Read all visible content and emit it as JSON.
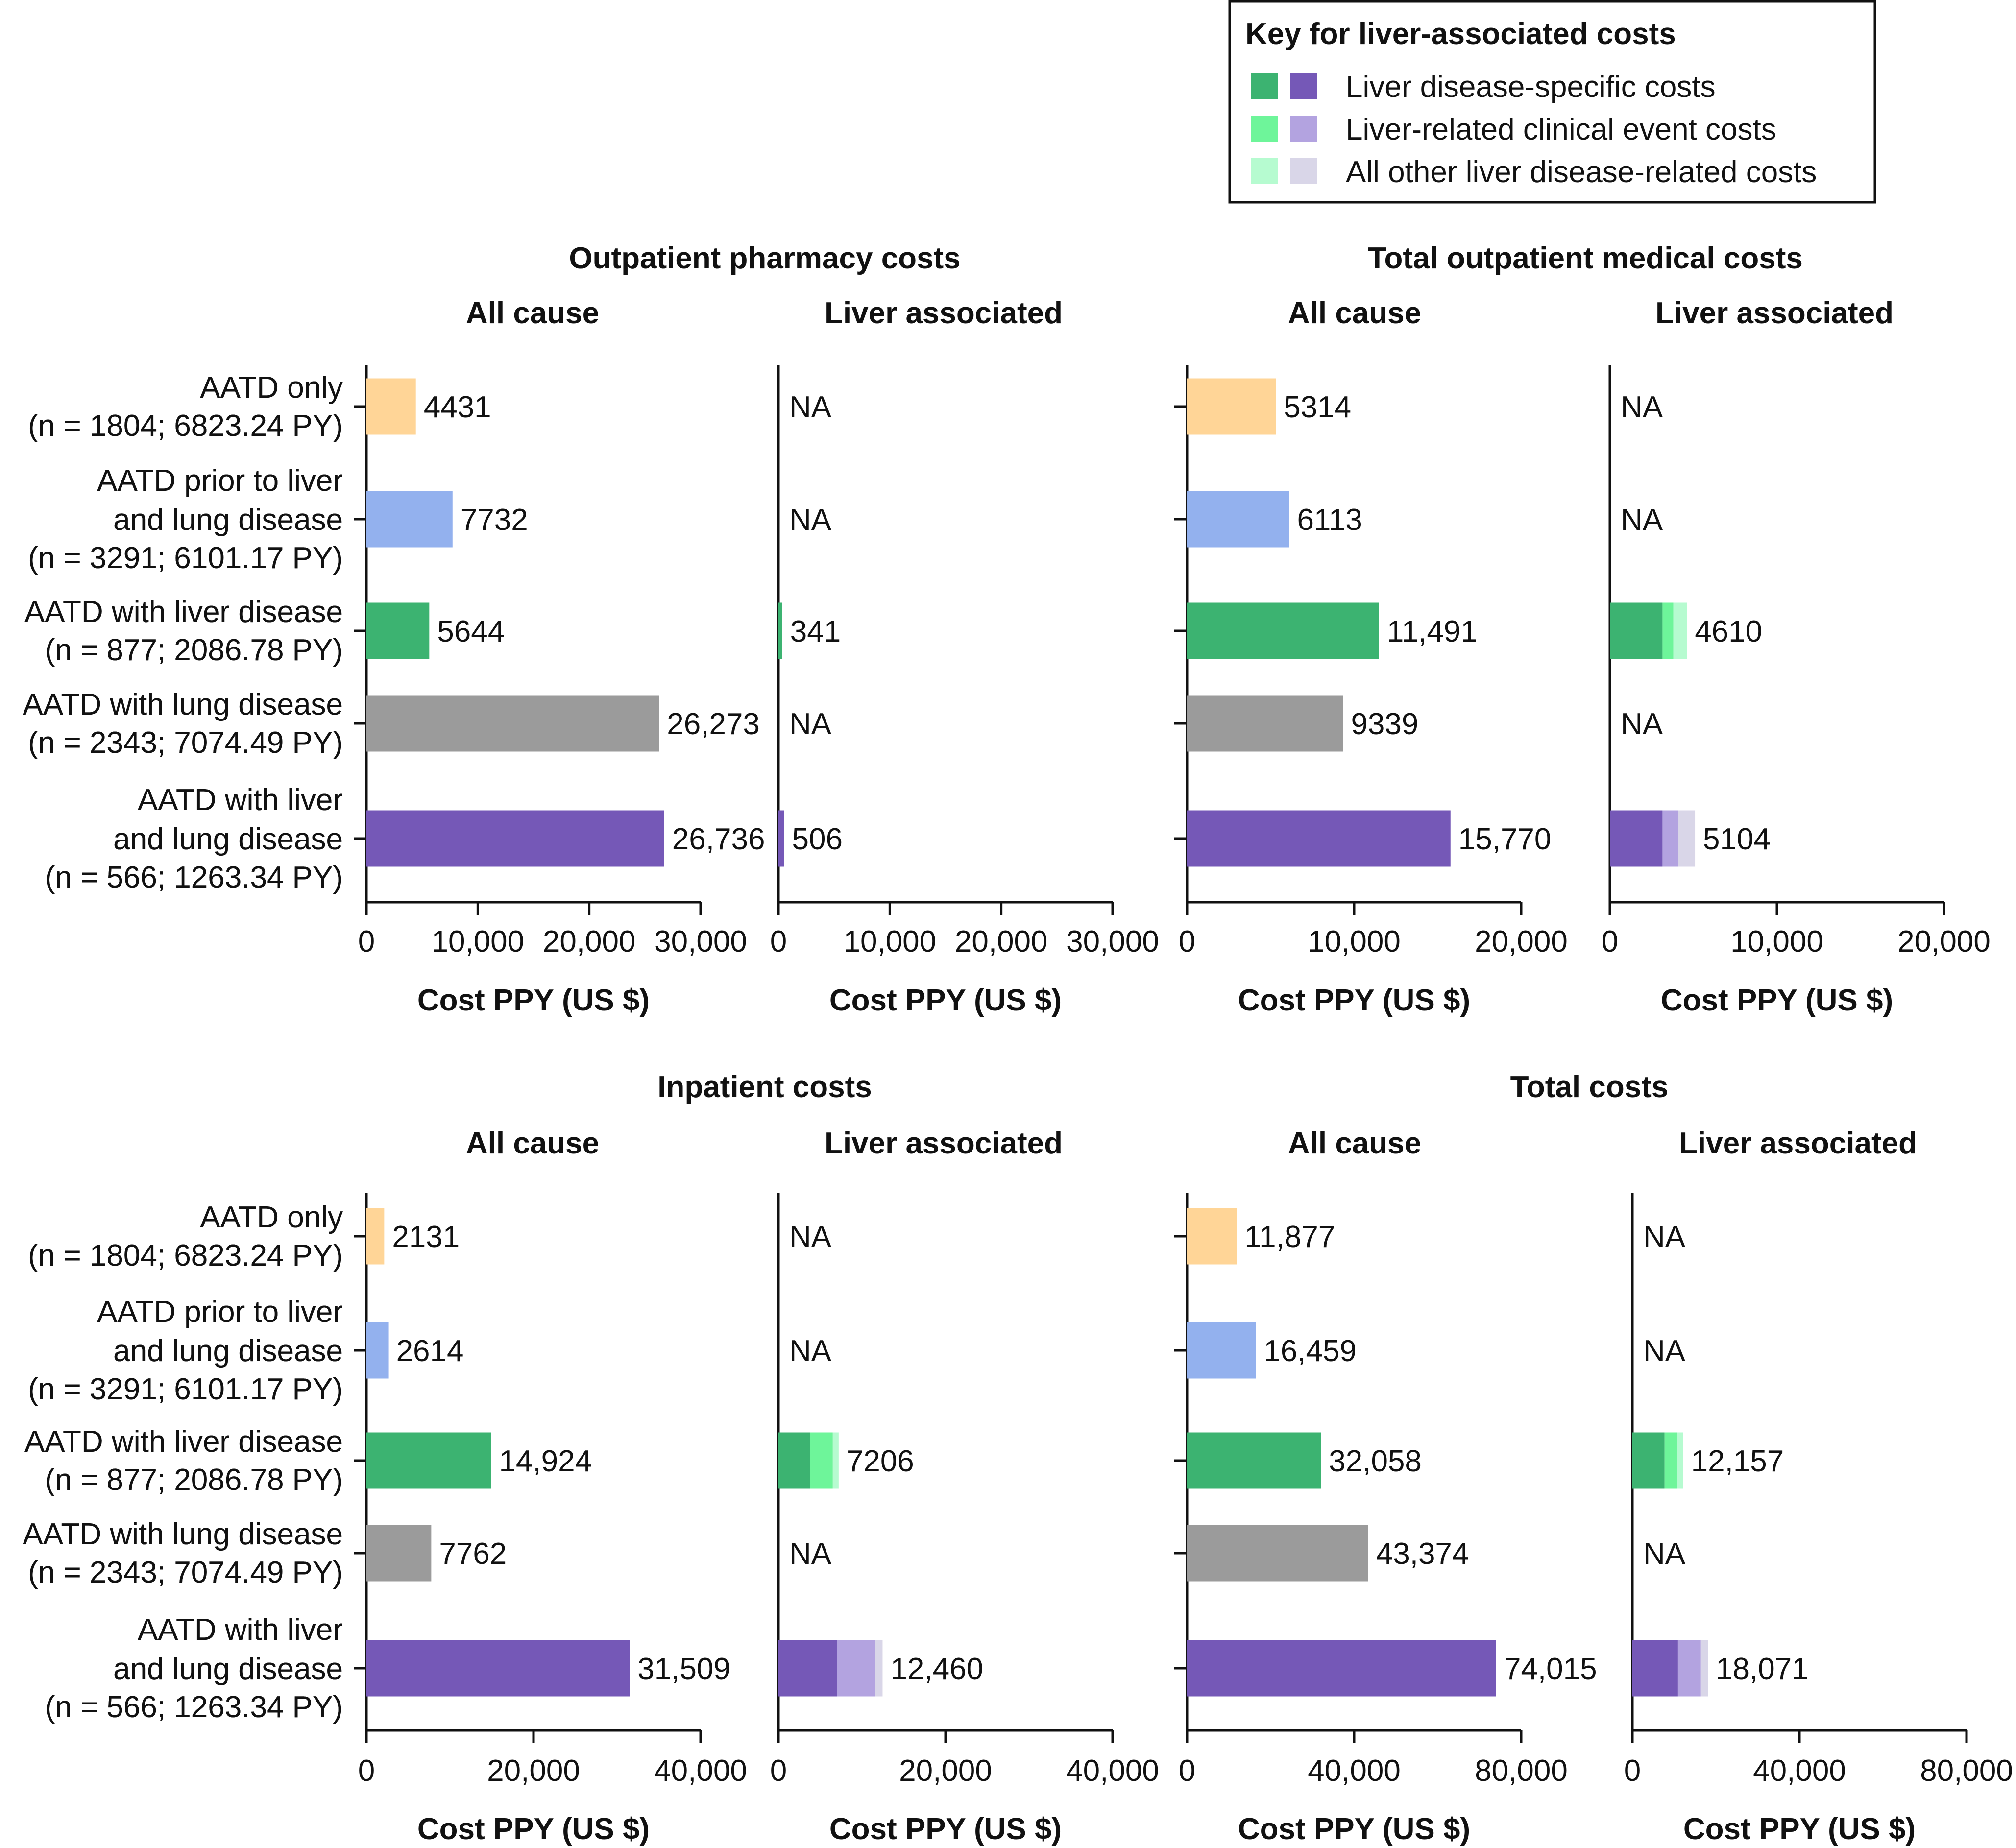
{
  "legend": {
    "title": "Key for liver-associated costs",
    "items": [
      {
        "label": "Liver disease-specific costs",
        "colors": [
          "#3cb371",
          "#7558b7"
        ]
      },
      {
        "label": "Liver-related clinical event costs",
        "colors": [
          "#6ef59a",
          "#b3a3e0"
        ]
      },
      {
        "label": "All other liver disease-related costs",
        "colors": [
          "#b6fbd0",
          "#d9d6e8"
        ]
      }
    ]
  },
  "categories": [
    [
      "AATD only",
      "(n = 1804; 6823.24 PY)"
    ],
    [
      "AATD prior to liver",
      "and lung disease",
      "(n = 3291; 6101.17 PY)"
    ],
    [
      "AATD with liver disease",
      "(n = 877; 2086.78 PY)"
    ],
    [
      "AATD with lung disease",
      "(n = 2343; 7074.49 PY)"
    ],
    [
      "AATD with liver",
      "and lung disease",
      "(n = 566; 1263.34 PY)"
    ]
  ],
  "colors": {
    "all_cause": [
      "#ffd597",
      "#93b1ee",
      "#3cb371",
      "#9b9b9b",
      "#7558b7"
    ],
    "liver_green": [
      "#3cb371",
      "#6ef59a",
      "#b6fbd0"
    ],
    "liver_purple": [
      "#7558b7",
      "#b3a3e0",
      "#d9d6e8"
    ]
  },
  "chart_data": [
    {
      "type": "bar",
      "title": "Outpatient pharmacy costs",
      "panels": [
        {
          "subtitle": "All cause",
          "xlabel": "Cost PPY (US $)",
          "xlim": [
            0,
            30000
          ],
          "ticks": [
            "0",
            "10,000",
            "20,000",
            "30,000"
          ],
          "values": [
            4431,
            7732,
            5644,
            26273,
            26736
          ],
          "labels": [
            "4431",
            "7732",
            "5644",
            "26,273",
            "26,736"
          ]
        },
        {
          "subtitle": "Liver associated",
          "xlabel": "Cost PPY (US $)",
          "xlim": [
            0,
            30000
          ],
          "ticks": [
            "0",
            "10,000",
            "20,000",
            "30,000"
          ],
          "stacked": [
            null,
            null,
            [
              341,
              0,
              0
            ],
            null,
            [
              506,
              0,
              0
            ]
          ],
          "labels": [
            "NA",
            "NA",
            "341",
            "NA",
            "506"
          ]
        }
      ]
    },
    {
      "type": "bar",
      "title": "Total outpatient medical costs",
      "panels": [
        {
          "subtitle": "All cause",
          "xlabel": "Cost PPY (US $)",
          "xlim": [
            0,
            20000
          ],
          "ticks": [
            "0",
            "10,000",
            "20,000"
          ],
          "values": [
            5314,
            6113,
            11491,
            9339,
            15770
          ],
          "labels": [
            "5314",
            "6113",
            "11,491",
            "9339",
            "15,770"
          ]
        },
        {
          "subtitle": "Liver associated",
          "xlabel": "Cost PPY (US $)",
          "xlim": [
            0,
            20000
          ],
          "ticks": [
            "0",
            "10,000",
            "20,000"
          ],
          "stacked": [
            null,
            null,
            [
              3150,
              650,
              810
            ],
            null,
            [
              3150,
              950,
              1004
            ]
          ],
          "labels": [
            "NA",
            "NA",
            "4610",
            "NA",
            "5104"
          ]
        }
      ]
    },
    {
      "type": "bar",
      "title": "Inpatient costs",
      "panels": [
        {
          "subtitle": "All cause",
          "xlabel": "Cost PPY (US $)",
          "xlim": [
            0,
            40000
          ],
          "ticks": [
            "0",
            "20,000",
            "40,000"
          ],
          "values": [
            2131,
            2614,
            14924,
            7762,
            31509
          ],
          "labels": [
            "2131",
            "2614",
            "14,924",
            "7762",
            "31,509"
          ]
        },
        {
          "subtitle": "Liver associated",
          "xlabel": "Cost PPY (US $)",
          "xlim": [
            0,
            40000
          ],
          "ticks": [
            "0",
            "20,000",
            "40,000"
          ],
          "stacked": [
            null,
            null,
            [
              3800,
              2700,
              706
            ],
            null,
            [
              7000,
              4600,
              860
            ]
          ],
          "labels": [
            "NA",
            "NA",
            "7206",
            "NA",
            "12,460"
          ]
        }
      ]
    },
    {
      "type": "bar",
      "title": "Total costs",
      "panels": [
        {
          "subtitle": "All cause",
          "xlabel": "Cost PPY (US $)",
          "xlim": [
            0,
            80000
          ],
          "ticks": [
            "0",
            "40,000",
            "80,000"
          ],
          "values": [
            11877,
            16459,
            32058,
            43374,
            74015
          ],
          "labels": [
            "11,877",
            "16,459",
            "32,058",
            "43,374",
            "74,015"
          ]
        },
        {
          "subtitle": "Liver associated",
          "xlabel": "Cost PPY (US $)",
          "xlim": [
            0,
            80000
          ],
          "ticks": [
            "0",
            "40,000",
            "80,000"
          ],
          "stacked": [
            null,
            null,
            [
              7700,
              3000,
              1457
            ],
            null,
            [
              10900,
              5500,
              1671
            ]
          ],
          "labels": [
            "NA",
            "NA",
            "12,157",
            "NA",
            "18,071"
          ]
        }
      ]
    }
  ]
}
